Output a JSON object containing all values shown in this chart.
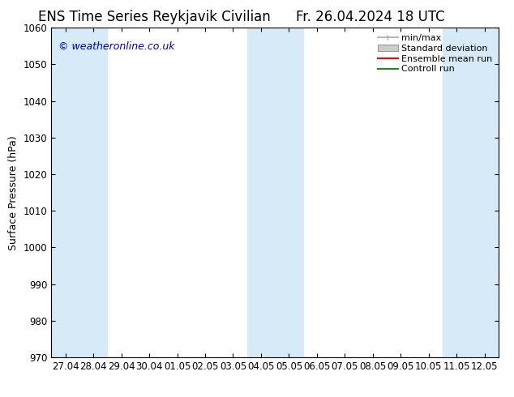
{
  "title": "ENS Time Series Reykjavik Civilian",
  "title_right": "Fr. 26.04.2024 18 UTC",
  "ylabel": "Surface Pressure (hPa)",
  "ylim": [
    970,
    1060
  ],
  "yticks": [
    970,
    980,
    990,
    1000,
    1010,
    1020,
    1030,
    1040,
    1050,
    1060
  ],
  "xtick_labels": [
    "27.04",
    "28.04",
    "29.04",
    "30.04",
    "01.05",
    "02.05",
    "03.05",
    "04.05",
    "05.05",
    "06.05",
    "07.05",
    "08.05",
    "09.05",
    "10.05",
    "11.05",
    "12.05"
  ],
  "watermark": "© weatheronline.co.uk",
  "watermark_color": "#0000cc",
  "bg_color": "#ffffff",
  "plot_bg_color": "#ffffff",
  "shaded_band_color": "#d6eaf8",
  "legend_entries": [
    "min/max",
    "Standard deviation",
    "Ensemble mean run",
    "Controll run"
  ],
  "title_fontsize": 12,
  "axis_label_fontsize": 9,
  "tick_fontsize": 8.5
}
